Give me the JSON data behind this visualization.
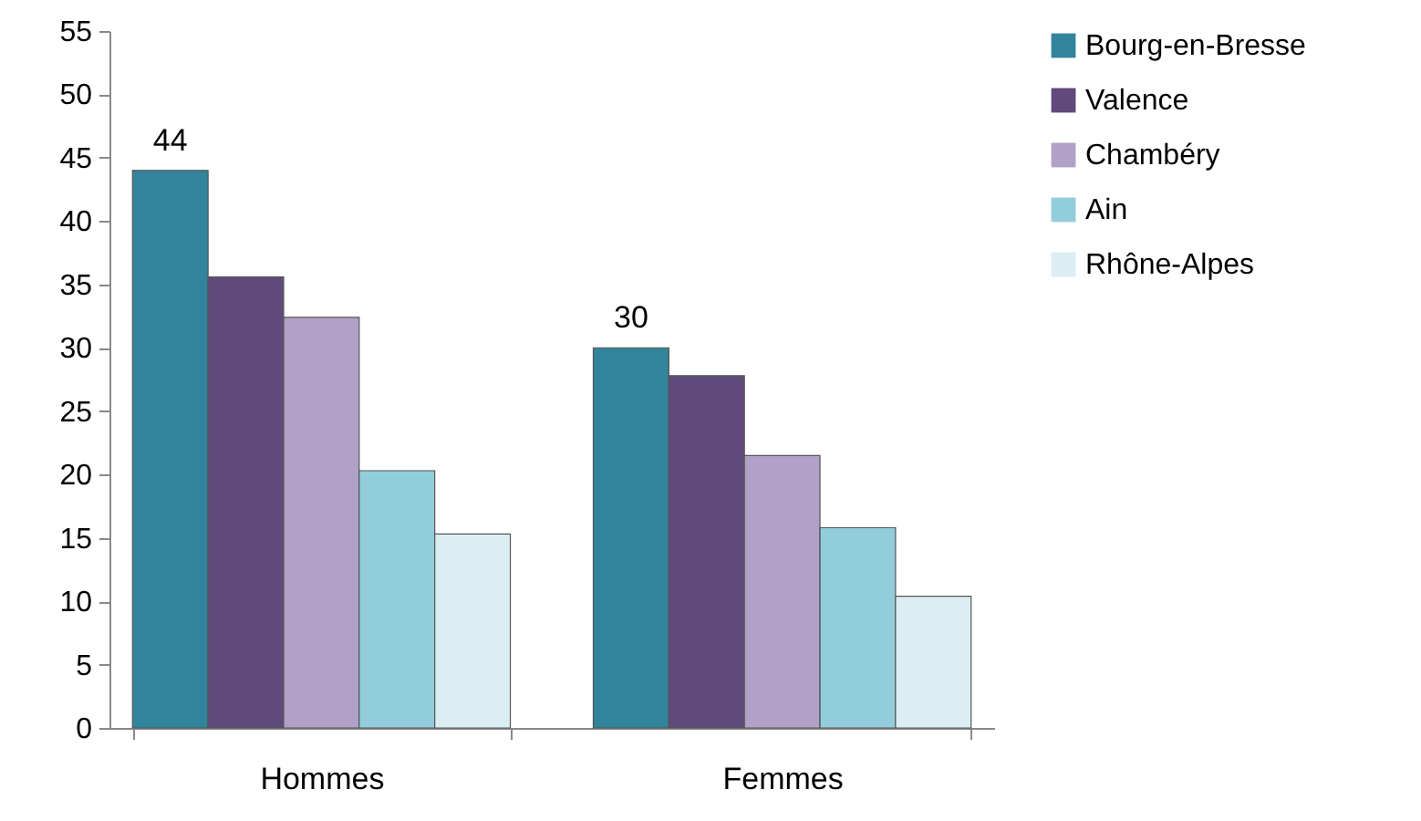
{
  "chart_data": {
    "type": "bar",
    "categories": [
      "Hommes",
      "Femmes"
    ],
    "series": [
      {
        "name": "Bourg-en-Bresse",
        "color": "#31849b",
        "values": [
          44,
          30
        ],
        "value_labels": [
          "44",
          "30"
        ]
      },
      {
        "name": "Valence",
        "color": "#5f4a7b",
        "values": [
          35.6,
          27.8
        ]
      },
      {
        "name": "Chambéry",
        "color": "#b1a0c7",
        "values": [
          32.4,
          21.5
        ]
      },
      {
        "name": "Ain",
        "color": "#92cddc",
        "values": [
          20.3,
          15.8
        ]
      },
      {
        "name": "Rhône-Alpes",
        "color": "#dbeef4",
        "values": [
          15.3,
          10.4
        ]
      }
    ],
    "ylim": [
      0,
      55
    ],
    "yticks": [
      0,
      5,
      10,
      15,
      20,
      25,
      30,
      35,
      40,
      45,
      50,
      55
    ],
    "grid": false,
    "legend": "right"
  }
}
